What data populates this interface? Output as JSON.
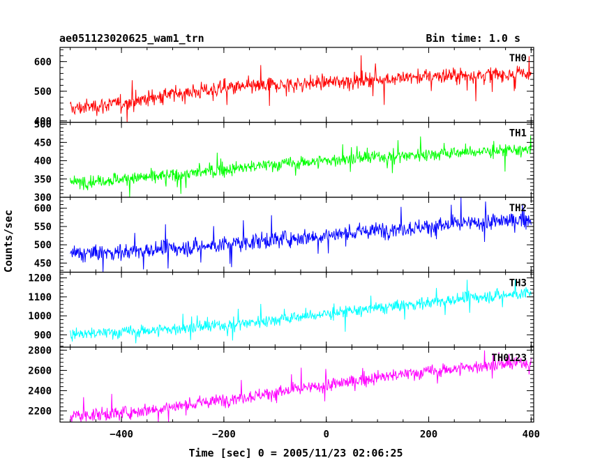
{
  "header": {
    "left_title": "ae051123020625_wam1_trn",
    "right_title": "Bin time: 1.0 s"
  },
  "chart_data": {
    "type": "line",
    "xlabel": "Time [sec] 0 = 2005/11/23 02:06:25",
    "ylabel": "Counts/sec",
    "xlim": [
      -520,
      405
    ],
    "x_data_range": [
      -500,
      400
    ],
    "bin_time_s": 1.0,
    "x_ticks": [
      -400,
      -200,
      0,
      200,
      400
    ],
    "x_tick_labels": [
      "−400",
      "−200",
      "0",
      "200",
      "400"
    ],
    "grid": false,
    "panels": [
      {
        "name": "TH0",
        "color": "#ff0000",
        "ylim": [
          395,
          648
        ],
        "y_ticks": [
          400,
          500,
          600
        ],
        "y_tick_labels": [
          "400",
          "500",
          "600"
        ],
        "trend_x": [
          -500,
          -400,
          -300,
          -200,
          -100,
          0,
          100,
          200,
          300,
          400
        ],
        "trend_y": [
          440,
          460,
          490,
          510,
          520,
          530,
          540,
          550,
          555,
          560
        ],
        "noise": 45
      },
      {
        "name": "TH1",
        "color": "#00ff00",
        "ylim": [
          300,
          505
        ],
        "y_ticks": [
          300,
          350,
          400,
          450,
          500
        ],
        "y_tick_labels": [
          "300",
          "350",
          "400",
          "450",
          "500"
        ],
        "trend_x": [
          -500,
          -400,
          -300,
          -200,
          -100,
          0,
          100,
          200,
          300,
          400
        ],
        "trend_y": [
          340,
          350,
          360,
          375,
          390,
          400,
          410,
          418,
          425,
          430
        ],
        "noise": 30
      },
      {
        "name": "TH2",
        "color": "#0000ff",
        "ylim": [
          425,
          630
        ],
        "y_ticks": [
          450,
          500,
          550,
          600
        ],
        "y_tick_labels": [
          "450",
          "500",
          "550",
          "600"
        ],
        "trend_x": [
          -500,
          -400,
          -300,
          -200,
          -100,
          0,
          100,
          200,
          300,
          400
        ],
        "trend_y": [
          475,
          480,
          490,
          500,
          515,
          525,
          540,
          550,
          560,
          570
        ],
        "noise": 38
      },
      {
        "name": "TH3",
        "color": "#00ffff",
        "ylim": [
          835,
          1230
        ],
        "y_ticks": [
          900,
          1000,
          1100,
          1200
        ],
        "y_tick_labels": [
          "900",
          "1000",
          "1100",
          "1200"
        ],
        "trend_x": [
          -500,
          -400,
          -300,
          -200,
          -100,
          0,
          100,
          200,
          300,
          400
        ],
        "trend_y": [
          900,
          915,
          930,
          950,
          980,
          1010,
          1040,
          1070,
          1100,
          1120
        ],
        "noise": 55
      },
      {
        "name": "TH0123",
        "color": "#ff00ff",
        "ylim": [
          2090,
          2830
        ],
        "y_ticks": [
          2200,
          2400,
          2600,
          2800
        ],
        "y_tick_labels": [
          "2200",
          "2400",
          "2600",
          "2800"
        ],
        "trend_x": [
          -500,
          -400,
          -300,
          -200,
          -100,
          0,
          100,
          200,
          300,
          400
        ],
        "trend_y": [
          2150,
          2180,
          2240,
          2310,
          2380,
          2450,
          2530,
          2590,
          2640,
          2680
        ],
        "noise": 110
      }
    ]
  }
}
